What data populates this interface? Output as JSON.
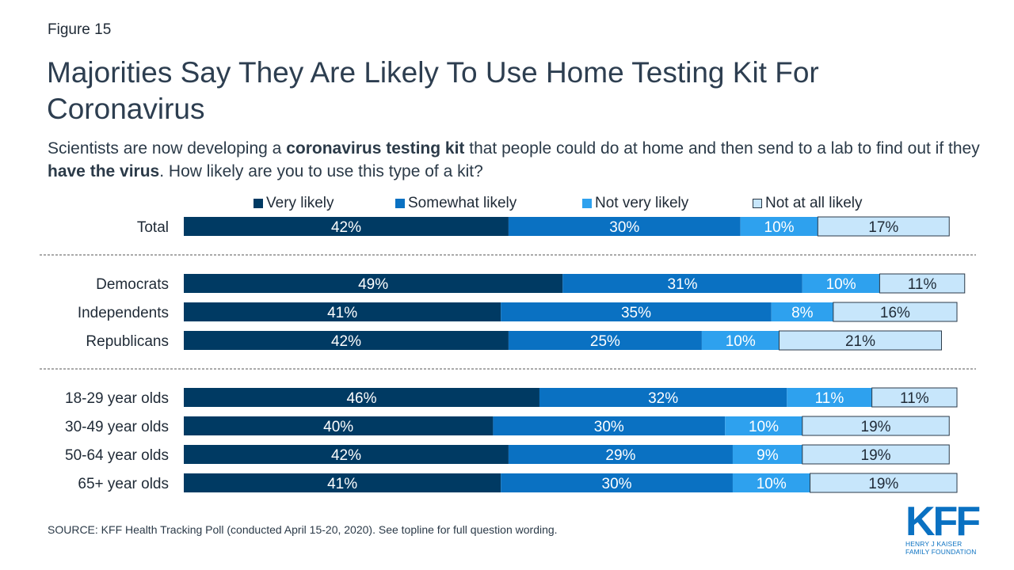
{
  "figure_label": "Figure 15",
  "title": "Majorities Say They Are Likely To Use Home Testing Kit For Coronavirus",
  "subtitle": {
    "p1": "Scientists are now developing a ",
    "b1": "coronavirus testing kit",
    "p2": " that people could do at home and then send to a lab to find out if they ",
    "b2": "have the virus",
    "p3": ". How likely are you to use this type of a kit?"
  },
  "legend": [
    {
      "label": "Very likely",
      "color": "#003a63"
    },
    {
      "label": "Somewhat likely",
      "color": "#0a71c2"
    },
    {
      "label": "Not very likely",
      "color": "#2ea1ee"
    },
    {
      "label": "Not at all likely",
      "color": "#c7e6fb"
    }
  ],
  "chart_data": {
    "type": "bar",
    "orientation": "horizontal",
    "stacked": true,
    "unit": "%",
    "categories": [
      "Total",
      "Democrats",
      "Independents",
      "Republicans",
      "18-29 year olds",
      "30-49 year olds",
      "50-64 year olds",
      "65+ year olds"
    ],
    "groups": [
      [
        "Total"
      ],
      [
        "Democrats",
        "Independents",
        "Republicans"
      ],
      [
        "18-29 year olds",
        "30-49 year olds",
        "50-64 year olds",
        "65+ year olds"
      ]
    ],
    "series": [
      {
        "name": "Very likely",
        "color": "#003a63",
        "values": [
          42,
          49,
          41,
          42,
          46,
          40,
          42,
          41
        ]
      },
      {
        "name": "Somewhat likely",
        "color": "#0a71c2",
        "values": [
          30,
          31,
          35,
          25,
          32,
          30,
          29,
          30
        ]
      },
      {
        "name": "Not very likely",
        "color": "#2ea1ee",
        "values": [
          10,
          10,
          8,
          10,
          11,
          10,
          9,
          10
        ]
      },
      {
        "name": "Not at all likely",
        "color": "#c7e6fb",
        "values": [
          17,
          11,
          16,
          21,
          11,
          19,
          19,
          19
        ]
      }
    ],
    "xlim": [
      0,
      100
    ],
    "legend_position": "top",
    "grid": false
  },
  "source": "SOURCE: KFF Health Tracking Poll (conducted April 15-20, 2020). See topline for full question wording.",
  "logo": {
    "mark": "KFF",
    "line1": "HENRY J KAISER",
    "line2": "FAMILY FOUNDATION"
  }
}
